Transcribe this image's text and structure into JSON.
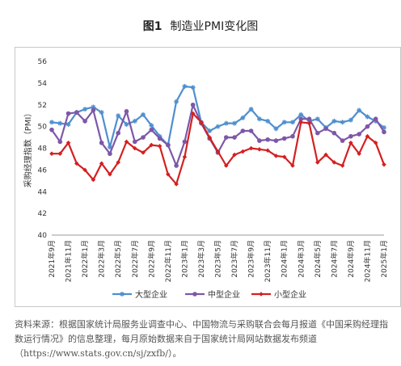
{
  "figure": {
    "number": "图1",
    "title": "制造业PMI变化图"
  },
  "source_note": "资料来源：根据国家统计局服务业调查中心、中国物流与采购联合会每月报道《中国采购经理指数运行情况》的信息整理，每月原始数据来自于国家统计局网站数据发布频道（https://www.stats.gov.cn/sj/zxfb/）。",
  "chart_data": {
    "type": "line",
    "ylabel": "采购经理指数（PMI）",
    "ylim": [
      40,
      56
    ],
    "yticks": [
      40,
      42,
      44,
      46,
      48,
      50,
      52,
      54,
      56
    ],
    "xtick_labels": [
      "2021年9月",
      "2021年11月",
      "2022年1月",
      "2022年3月",
      "2022年5月",
      "2022年7月",
      "2022年9月",
      "2022年11月",
      "2023年1月",
      "2023年3月",
      "2023年5月",
      "2023年7月",
      "2023年9月",
      "2023年11月",
      "2024年1月",
      "2024年3月",
      "2024年5月",
      "2024年7月",
      "2024年9月",
      "2024年11月",
      "2025年1月"
    ],
    "legend_position": "bottom",
    "series": [
      {
        "name": "大型企业",
        "color": "#4f8fce",
        "marker": "star",
        "values": [
          50.4,
          50.3,
          50.2,
          51.3,
          51.6,
          51.8,
          51.3,
          48.1,
          51.0,
          50.2,
          50.5,
          51.1,
          50.1,
          49.1,
          48.3,
          52.3,
          53.7,
          53.6,
          50.4,
          49.6,
          50.0,
          50.3,
          50.3,
          50.8,
          51.6,
          50.7,
          50.5,
          49.8,
          50.4,
          50.4,
          51.1,
          50.5,
          50.7,
          49.9,
          50.5,
          50.4,
          50.6,
          51.5,
          50.9,
          50.5,
          49.9
        ]
      },
      {
        "name": "中型企业",
        "color": "#7d57a8",
        "marker": "circle",
        "values": [
          49.7,
          48.6,
          51.2,
          51.3,
          50.5,
          51.5,
          48.5,
          47.5,
          49.4,
          51.4,
          48.6,
          49.0,
          49.7,
          48.9,
          48.3,
          46.4,
          48.6,
          52.0,
          50.3,
          48.9,
          47.6,
          49.0,
          49.0,
          49.6,
          49.6,
          48.7,
          48.8,
          48.7,
          48.9,
          49.1,
          50.7,
          50.7,
          49.4,
          49.8,
          49.4,
          48.7,
          49.1,
          49.3,
          50.0,
          50.7,
          49.5
        ]
      },
      {
        "name": "小型企业",
        "color": "#d42020",
        "marker": "diamond",
        "values": [
          47.5,
          47.5,
          48.5,
          46.6,
          46.0,
          45.1,
          46.6,
          45.6,
          46.7,
          48.6,
          48.0,
          47.6,
          48.3,
          48.2,
          45.6,
          44.7,
          47.2,
          51.2,
          50.4,
          49.0,
          47.7,
          46.4,
          47.4,
          47.7,
          48.0,
          47.9,
          47.8,
          47.3,
          47.2,
          46.4,
          50.4,
          50.3,
          46.7,
          47.4,
          46.7,
          46.4,
          48.5,
          47.5,
          49.1,
          48.5,
          46.5
        ]
      }
    ]
  }
}
